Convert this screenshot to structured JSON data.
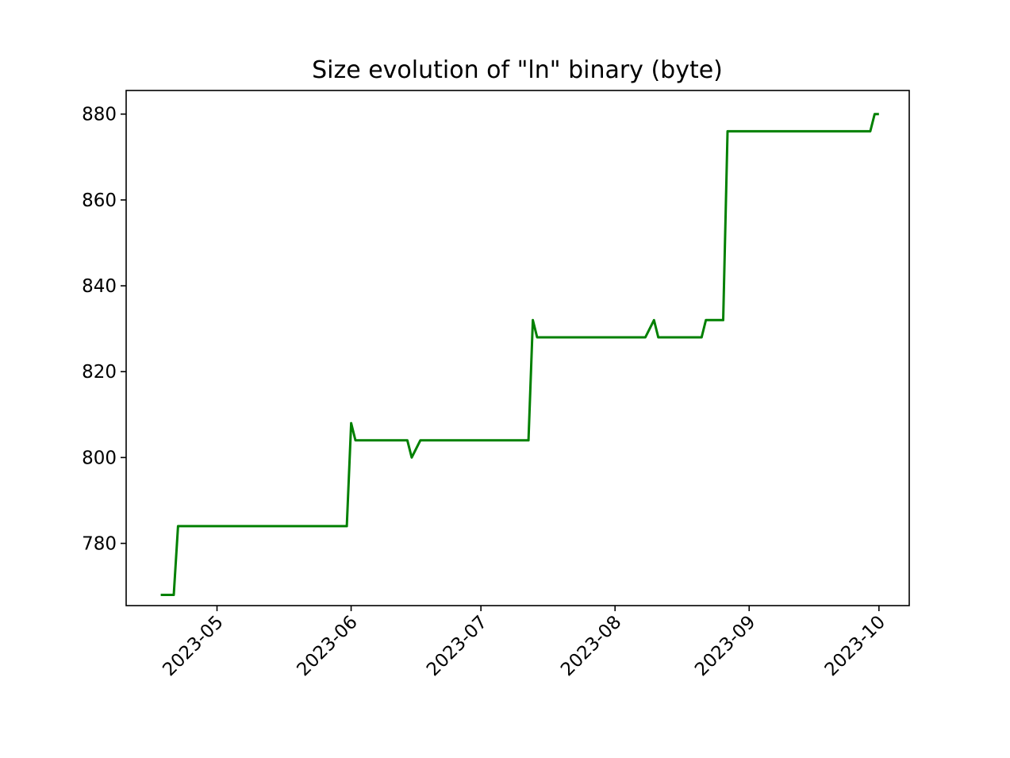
{
  "chart_data": {
    "type": "line",
    "title": "Size evolution of \"ln\" binary (byte)",
    "xlabel": "",
    "ylabel": "",
    "x_axis_type": "date",
    "x_tick_labels": [
      "2023-05",
      "2023-06",
      "2023-07",
      "2023-08",
      "2023-09",
      "2023-10"
    ],
    "y_tick_labels": [
      "780",
      "800",
      "820",
      "840",
      "860",
      "880"
    ],
    "xlim": [
      "2023-04-10",
      "2023-10-08"
    ],
    "ylim": [
      765.5,
      885.5
    ],
    "grid": false,
    "legend": false,
    "series": [
      {
        "color": "#008000",
        "x": [
          "2023-04-18",
          "2023-04-21",
          "2023-04-22",
          "2023-05-31",
          "2023-06-01",
          "2023-06-02",
          "2023-06-14",
          "2023-06-15",
          "2023-06-17",
          "2023-07-12",
          "2023-07-13",
          "2023-07-14",
          "2023-08-08",
          "2023-08-10",
          "2023-08-11",
          "2023-08-21",
          "2023-08-22",
          "2023-08-26",
          "2023-08-27",
          "2023-09-29",
          "2023-09-30",
          "2023-10-01"
        ],
        "y": [
          768,
          768,
          784,
          784,
          808,
          804,
          804,
          800,
          804,
          804,
          832,
          828,
          828,
          832,
          828,
          828,
          832,
          832,
          876,
          876,
          880,
          880
        ]
      }
    ]
  }
}
